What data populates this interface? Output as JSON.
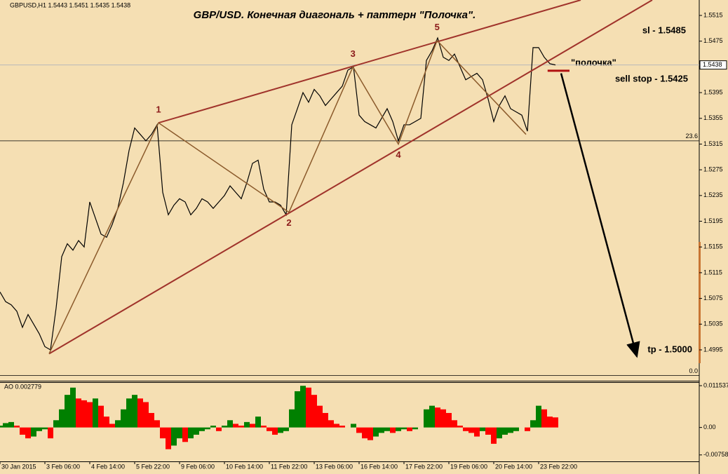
{
  "chart_data": [
    {
      "type": "line",
      "title": "GBP/USD. Конечная диагональ + паттерн \"Полочка\".",
      "header": "GBPUSD,H1  1.5443 1.5451 1.5435 1.5438",
      "color": "#000000",
      "series": [
        {
          "name": "GBPUSD,H1",
          "color": "#000000",
          "values": [
            1.5085,
            1.507,
            1.5065,
            1.5055,
            1.503,
            1.505,
            1.5035,
            1.502,
            1.5,
            1.4995,
            1.506,
            1.514,
            1.516,
            1.515,
            1.5165,
            1.5155,
            1.5225,
            1.52,
            1.5175,
            1.517,
            1.519,
            1.5215,
            1.5255,
            1.5305,
            1.534,
            1.533,
            1.532,
            1.533,
            1.5345,
            1.524,
            1.5205,
            1.522,
            1.523,
            1.5225,
            1.5205,
            1.5215,
            1.523,
            1.5225,
            1.5215,
            1.5225,
            1.5235,
            1.525,
            1.524,
            1.523,
            1.5255,
            1.5285,
            1.529,
            1.5245,
            1.5225,
            1.5225,
            1.522,
            1.5205,
            1.5345,
            1.537,
            1.5395,
            1.538,
            1.54,
            1.539,
            1.5375,
            1.5385,
            1.5395,
            1.5405,
            1.543,
            1.5435,
            1.536,
            1.535,
            1.5345,
            1.534,
            1.5355,
            1.537,
            1.535,
            1.532,
            1.5345,
            1.5345,
            1.535,
            1.5355,
            1.5445,
            1.546,
            1.548,
            1.545,
            1.5445,
            1.5455,
            1.5435,
            1.5415,
            1.542,
            1.5425,
            1.5415,
            1.5385,
            1.535,
            1.5375,
            1.539,
            1.537,
            1.5365,
            1.536,
            1.5335,
            1.5465,
            1.5465,
            1.545,
            1.544,
            1.5438
          ]
        }
      ],
      "last_price": 1.5438,
      "xlim": [
        0,
        124.625
      ],
      "xticks": [
        {
          "value": 0,
          "label": "30 Jan 2015"
        },
        {
          "value": 8,
          "label": "3 Feb 06:00"
        },
        {
          "value": 16,
          "label": "4 Feb 14:00"
        },
        {
          "value": 24,
          "label": "5 Feb 22:00"
        },
        {
          "value": 32,
          "label": "9 Feb 06:00"
        },
        {
          "value": 40,
          "label": "10 Feb 14:00"
        },
        {
          "value": 48,
          "label": "11 Feb 22:00"
        },
        {
          "value": 56,
          "label": "13 Feb 06:00"
        },
        {
          "value": 64,
          "label": "16 Feb 14:00"
        },
        {
          "value": 72,
          "label": "17 Feb 22:00"
        },
        {
          "value": 80,
          "label": "19 Feb 06:00"
        },
        {
          "value": 88,
          "label": "20 Feb 14:00"
        },
        {
          "value": 96,
          "label": "23 Feb 22:00"
        }
      ],
      "ylim": [
        1.4947,
        1.5539
      ],
      "yticks": [
        1.5515,
        1.5475,
        1.5395,
        1.5355,
        1.5315,
        1.5275,
        1.5235,
        1.5195,
        1.5155,
        1.5115,
        1.5075,
        1.5035,
        1.4995
      ],
      "fib_levels": [
        {
          "label": "23.6",
          "value": 1.532
        },
        {
          "label": "0.0",
          "value": 1.4955
        }
      ],
      "trendlines": [
        {
          "color": "#a0332b",
          "x": [
            28.25,
            103.5
          ],
          "y": [
            1.5348,
            1.5539
          ]
        },
        {
          "color": "#a0332b",
          "x": [
            8.75,
            116.25
          ],
          "y": [
            1.4989,
            1.5539
          ]
        }
      ],
      "zigzag": {
        "color": "#8b5a2b",
        "x": [
          8.75,
          28.25,
          51.5,
          62.9,
          71,
          77.9,
          93.75
        ],
        "y": [
          1.4989,
          1.5348,
          1.5209,
          1.5435,
          1.5315,
          1.5476,
          1.533
        ],
        "labels": [
          null,
          "1",
          "2",
          "3",
          "4",
          "5",
          null
        ]
      },
      "shelf": {
        "color": "#b01010",
        "label": "\"полочка\"",
        "x": [
          97.6,
          101.5
        ],
        "y": [
          1.5429,
          1.5429
        ]
      },
      "arrow": {
        "color": "#000000",
        "x": [
          100,
          113.5
        ],
        "y": [
          1.5425,
          1.4985
        ]
      },
      "annotations": [
        "sl - 1.5485",
        "sell stop - 1.5425",
        "tp - 1.5000"
      ]
    },
    {
      "type": "bar",
      "title": "AO 0.002779",
      "up_color": "#008000",
      "down_color": "#ff0000",
      "values": [
        0.0005,
        0.0012,
        0.0015,
        0.0005,
        -0.002,
        -0.003,
        -0.0025,
        -0.001,
        -0.0005,
        -0.003,
        0.002,
        0.005,
        0.009,
        0.011,
        0.008,
        0.0075,
        0.007,
        0.008,
        0.006,
        0.003,
        0.001,
        0.002,
        0.005,
        0.008,
        0.009,
        0.008,
        0.007,
        0.004,
        0.002,
        -0.003,
        -0.006,
        -0.005,
        -0.003,
        -0.004,
        -0.003,
        -0.002,
        -0.001,
        -0.0005,
        0.0005,
        -0.001,
        0.0005,
        0.002,
        0.001,
        0.0005,
        0.0015,
        0.001,
        0.003,
        0.0005,
        -0.001,
        -0.002,
        -0.0015,
        -0.001,
        0.005,
        0.01,
        0.0115,
        0.011,
        0.009,
        0.006,
        0.004,
        0.002,
        0.001,
        0.0005,
        0,
        0.001,
        -0.0015,
        -0.003,
        -0.0035,
        -0.0025,
        -0.0015,
        -0.001,
        -0.0015,
        -0.001,
        -0.0005,
        -0.001,
        -0.0005,
        0,
        0.005,
        0.006,
        0.0055,
        0.005,
        0.004,
        0.002,
        0.0005,
        -0.001,
        -0.0015,
        -0.0025,
        -0.001,
        -0.002,
        -0.0045,
        -0.003,
        -0.002,
        -0.0015,
        -0.001,
        0,
        -0.001,
        0.002,
        0.006,
        0.005,
        0.003,
        0.002779
      ],
      "ylim": [
        -0.00936,
        0.01251
      ],
      "yticks": [
        0.011537,
        {
          "value": 0,
          "label": "0.00"
        },
        -0.00758
      ]
    }
  ]
}
